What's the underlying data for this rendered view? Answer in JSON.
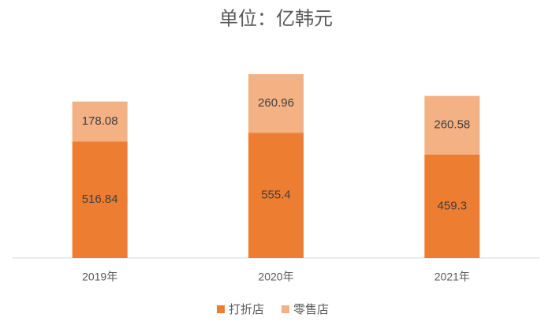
{
  "chart_data": {
    "type": "stacked_bar",
    "title": "单位：亿韩元",
    "categories": [
      "2019年",
      "2020年",
      "2021年"
    ],
    "series": [
      {
        "name": "打折店",
        "color": "#ED7D31",
        "values": [
          516.84,
          555.4,
          459.3
        ]
      },
      {
        "name": "零售店",
        "color": "#F4B183",
        "values": [
          178.08,
          260.96,
          260.58
        ]
      }
    ],
    "legend": "bottom"
  }
}
